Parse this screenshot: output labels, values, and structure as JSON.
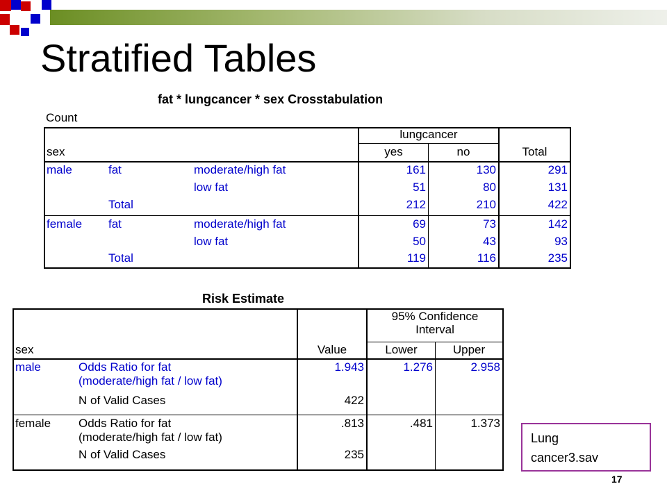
{
  "slide": {
    "title": "Stratified Tables",
    "page_number": "17",
    "callout": {
      "line1": "Lung",
      "line2": "cancer3.sav"
    }
  },
  "crosstab": {
    "caption": "fat * lungcancer * sex Crosstabulation",
    "count_label": "Count",
    "header": {
      "group": "lungcancer",
      "row_var": "sex",
      "yes": "yes",
      "no": "no",
      "total": "Total"
    },
    "rows": [
      {
        "sex": "male",
        "fat": "fat",
        "level": "moderate/high fat",
        "yes": "161",
        "no": "130",
        "total": "291"
      },
      {
        "sex": "",
        "fat": "",
        "level": "low fat",
        "yes": "51",
        "no": "80",
        "total": "131"
      },
      {
        "sex": "",
        "fat": "Total",
        "level": "",
        "yes": "212",
        "no": "210",
        "total": "422"
      },
      {
        "sex": "female",
        "fat": "fat",
        "level": "moderate/high fat",
        "yes": "69",
        "no": "73",
        "total": "142"
      },
      {
        "sex": "",
        "fat": "",
        "level": "low fat",
        "yes": "50",
        "no": "43",
        "total": "93"
      },
      {
        "sex": "",
        "fat": "Total",
        "level": "",
        "yes": "119",
        "no": "116",
        "total": "235"
      }
    ]
  },
  "risk": {
    "caption": "Risk Estimate",
    "header": {
      "ci": "95% Confidence Interval",
      "ci_line1": "95% Confidence",
      "ci_line2": "Interval",
      "row_var": "sex",
      "value": "Value",
      "lower": "Lower",
      "upper": "Upper"
    },
    "groups": [
      {
        "sex": "male",
        "or_label_1": "Odds Ratio for fat",
        "or_label_2": "(moderate/high fat / low fat)",
        "or_value": "1.943",
        "lower": "1.276",
        "upper": "2.958",
        "n_label": "N of Valid Cases",
        "n_value": "422"
      },
      {
        "sex": "female",
        "or_label_1": "Odds Ratio for fat",
        "or_label_2": "(moderate/high fat / low fat)",
        "or_value": ".813",
        "lower": ".481",
        "upper": "1.373",
        "n_label": "N of Valid Cases",
        "n_value": "235"
      }
    ]
  },
  "colors": {
    "accent_green": "#6b8e23",
    "square_red": "#cc0000",
    "square_blue": "#0000cc",
    "value_blue": "#0000cc",
    "callout_border": "#993399"
  }
}
